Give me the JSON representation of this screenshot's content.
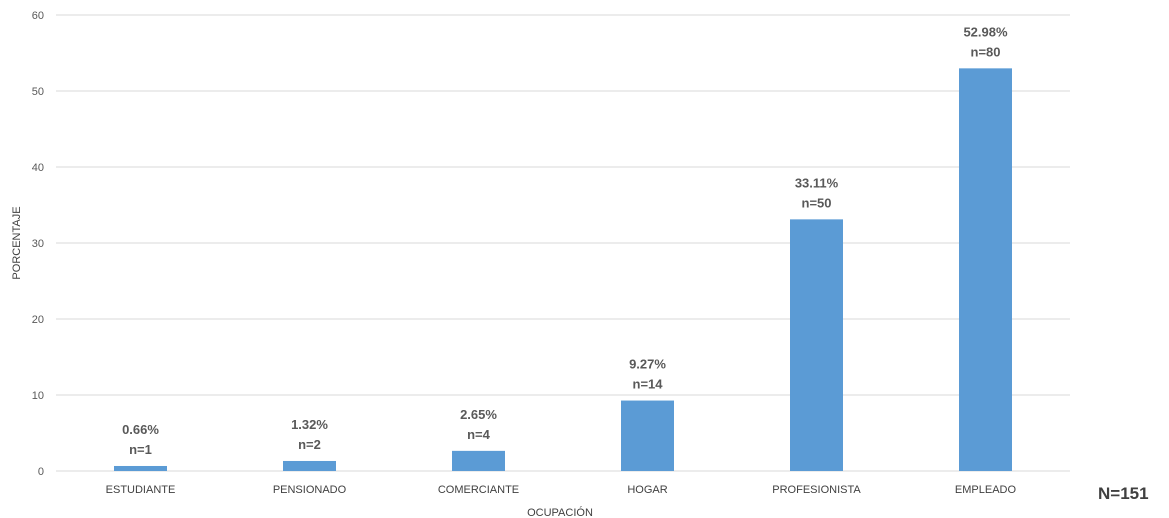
{
  "chart_data": {
    "type": "bar",
    "categories": [
      "ESTUDIANTE",
      "PENSIONADO",
      "COMERCIANTE",
      "HOGAR",
      "PROFESIONISTA",
      "EMPLEADO"
    ],
    "values": [
      0.66,
      1.32,
      2.65,
      9.27,
      33.11,
      52.98
    ],
    "percent_labels": [
      "0.66%",
      "1.32%",
      "2.65%",
      "9.27%",
      "33.11%",
      "52.98%"
    ],
    "count_labels": [
      "n=1",
      "n=2",
      "n=4",
      "n=14",
      "n=50",
      "n=80"
    ],
    "xlabel": "OCUPACIÓN",
    "ylabel": "PORCENTAJE",
    "ylim": [
      0,
      60
    ],
    "yticks": [
      0,
      10,
      20,
      30,
      40,
      50,
      60
    ],
    "grid": true,
    "bar_color": "#5B9BD5",
    "grid_color": "#D9D9D9",
    "total_label": "N=151"
  }
}
